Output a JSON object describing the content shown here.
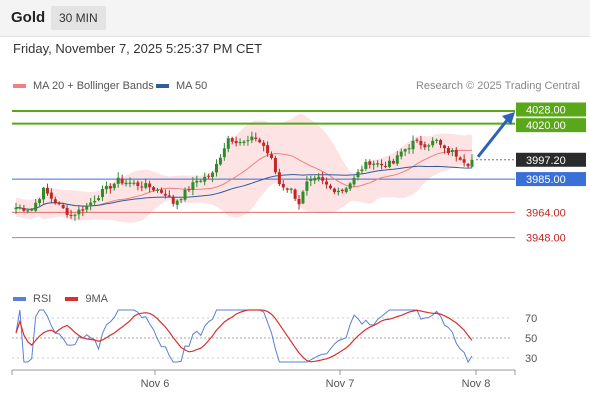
{
  "header": {
    "title": "Gold",
    "timeframe": "30 MIN",
    "datetime": "Friday, November 7, 2025 5:25:37 PM CET"
  },
  "legend": {
    "ma20_label": "MA 20 + Bollinger Bands",
    "ma50_label": "MA 50",
    "credit": "Research © 2025 Trading Central"
  },
  "rsi_legend": {
    "rsi_label": "RSI",
    "ma_label": "9MA"
  },
  "colors": {
    "ma20": "#f08080",
    "ma50": "#2f5d9e",
    "bollinger_fill": "#fde0e0",
    "candle_up": "#2e8b2e",
    "candle_down": "#c02828",
    "resistance_green": "#5aa71a",
    "support_blue": "#3b6fd8",
    "support_red": "#e07070",
    "price_label_bg": "#2b2b2b",
    "arrow": "#2d62b8",
    "rsi_line": "#5b7fd6",
    "rsi_ma": "#d83030"
  },
  "chart_data": [
    {
      "type": "candlestick",
      "title": "",
      "x_labels": [
        "Nov 6",
        "Nov 7",
        "Nov 8"
      ],
      "ylim": [
        3920,
        4040
      ],
      "levels": [
        {
          "value": "4028.00",
          "color": "green"
        },
        {
          "value": "4020.00",
          "color": "green"
        },
        {
          "value": "3997.20",
          "color": "dark",
          "note": "current price"
        },
        {
          "value": "3985.00",
          "color": "blue"
        },
        {
          "value": "3964.00",
          "color": "red"
        },
        {
          "value": "3948.00",
          "color": "red"
        }
      ],
      "target_arrow": {
        "from": 3997.2,
        "to": 4028
      },
      "ma_legend": [
        "MA 20 + Bollinger Bands",
        "MA 50"
      ]
    },
    {
      "type": "line",
      "title": "",
      "y_ticks": [
        "70",
        "50",
        "30"
      ],
      "ylim": [
        20,
        80
      ],
      "series_names": [
        "RSI",
        "9MA"
      ]
    }
  ]
}
